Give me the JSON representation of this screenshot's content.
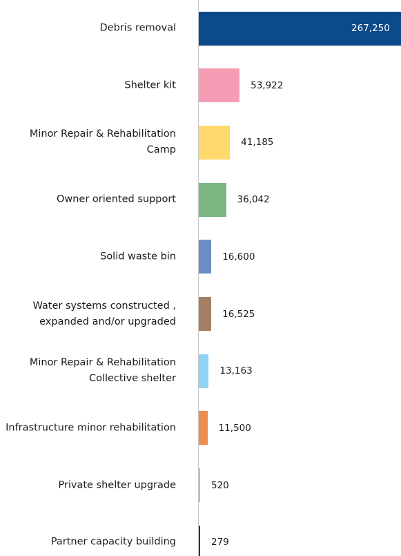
{
  "chart_data": {
    "type": "bar",
    "orientation": "horizontal",
    "categories": [
      "Debris removal",
      "Shelter kit",
      "Minor Repair & Rehabilitation Camp",
      "Owner oriented support",
      "Solid waste bin",
      "Water systems constructed , expanded and/or upgraded",
      "Minor Repair & Rehabilitation Collective shelter",
      "Infrastructure minor rehabilitation",
      "Private shelter upgrade",
      "Partner capacity building"
    ],
    "values": [
      267250,
      53922,
      41185,
      36042,
      16600,
      16525,
      13163,
      11500,
      520,
      279
    ],
    "value_labels": [
      "267,250",
      "53,922",
      "41,185",
      "36,042",
      "16,600",
      "16,525",
      "13,163",
      "11,500",
      "520",
      "279"
    ],
    "colors": [
      "#0b4a8b",
      "#f59db4",
      "#ffd86b",
      "#7db581",
      "#6b8fc4",
      "#a47f64",
      "#8fd3f5",
      "#f08c50",
      "#c3b1db",
      "#0f3a6b"
    ]
  }
}
